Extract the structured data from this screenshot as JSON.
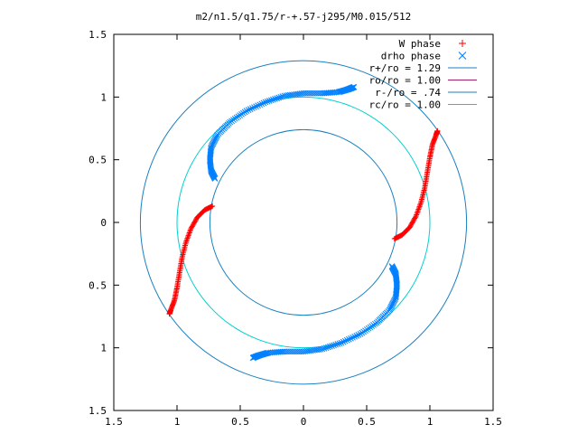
{
  "chart_data": {
    "type": "scatter",
    "title": "m2/n1.5/q1.75/r-+.57-j295/M0.015/512",
    "xlim": [
      -1.5,
      1.5
    ],
    "ylim": [
      -1.5,
      1.5
    ],
    "xticks": [
      {
        "v": -1.5,
        "label": "1.5"
      },
      {
        "v": -1,
        "label": "1"
      },
      {
        "v": -0.5,
        "label": "0.5"
      },
      {
        "v": 0,
        "label": "0"
      },
      {
        "v": 0.5,
        "label": "0.5"
      },
      {
        "v": 1,
        "label": "1"
      },
      {
        "v": 1.5,
        "label": "1.5"
      }
    ],
    "yticks": [
      {
        "v": 1.5,
        "label": "1.5"
      },
      {
        "v": 1,
        "label": "1"
      },
      {
        "v": 0.5,
        "label": "0.5"
      },
      {
        "v": 0,
        "label": "0"
      },
      {
        "v": -0.5,
        "label": "0.5"
      },
      {
        "v": -1,
        "label": "1"
      },
      {
        "v": -1.5,
        "label": "1.5"
      }
    ],
    "legend_position": "top-right",
    "legend": [
      {
        "label": "W phase",
        "marker": "plus",
        "color": "#ff0000"
      },
      {
        "label": "drho phase",
        "marker": "cross",
        "color": "#0080ff"
      },
      {
        "label": "r+/ro = 1.29",
        "line": true,
        "color": "#1a80c0"
      },
      {
        "label": "ro/ro = 1.00",
        "line": true,
        "color": "#a0206a"
      },
      {
        "label": "r-/ro = .74",
        "line": true,
        "color": "#1a80c0"
      },
      {
        "label": "rc/ro = 1.00",
        "line": true,
        "color": "#00d0d0"
      }
    ],
    "circles": [
      {
        "name": "r+/ro",
        "r": 1.29,
        "color": "#1a80c0"
      },
      {
        "name": "r-/ro",
        "r": 0.74,
        "color": "#1a80c0"
      },
      {
        "name": "rc/ro",
        "r": 1.0,
        "color": "#00d0d0"
      }
    ],
    "series": [
      {
        "name": "W phase",
        "marker": "plus",
        "color": "#ff0000",
        "arms": [
          {
            "points": [
              [
                0.72,
                -0.13
              ],
              [
                0.78,
                -0.1
              ],
              [
                0.84,
                -0.04
              ],
              [
                0.89,
                0.05
              ],
              [
                0.93,
                0.16
              ],
              [
                0.96,
                0.28
              ],
              [
                0.98,
                0.4
              ],
              [
                1.0,
                0.52
              ],
              [
                1.02,
                0.62
              ],
              [
                1.05,
                0.7
              ],
              [
                1.06,
                0.73
              ]
            ]
          },
          {
            "points": [
              [
                -0.72,
                0.13
              ],
              [
                -0.78,
                0.1
              ],
              [
                -0.84,
                0.04
              ],
              [
                -0.89,
                -0.05
              ],
              [
                -0.93,
                -0.16
              ],
              [
                -0.96,
                -0.28
              ],
              [
                -0.98,
                -0.4
              ],
              [
                -1.0,
                -0.52
              ],
              [
                -1.02,
                -0.62
              ],
              [
                -1.05,
                -0.7
              ],
              [
                -1.06,
                -0.73
              ]
            ]
          }
        ]
      },
      {
        "name": "drho phase",
        "marker": "cross",
        "color": "#0080ff",
        "arms": [
          {
            "points": [
              [
                -0.7,
                0.35
              ],
              [
                -0.73,
                0.41
              ],
              [
                -0.74,
                0.5
              ],
              [
                -0.73,
                0.6
              ],
              [
                -0.68,
                0.7
              ],
              [
                -0.58,
                0.8
              ],
              [
                -0.45,
                0.89
              ],
              [
                -0.3,
                0.96
              ],
              [
                -0.15,
                1.01
              ],
              [
                0.0,
                1.03
              ],
              [
                0.15,
                1.03
              ],
              [
                0.28,
                1.04
              ],
              [
                0.35,
                1.06
              ],
              [
                0.4,
                1.08
              ]
            ]
          },
          {
            "points": [
              [
                0.7,
                -0.35
              ],
              [
                0.73,
                -0.41
              ],
              [
                0.74,
                -0.5
              ],
              [
                0.73,
                -0.6
              ],
              [
                0.68,
                -0.7
              ],
              [
                0.58,
                -0.8
              ],
              [
                0.45,
                -0.89
              ],
              [
                0.3,
                -0.96
              ],
              [
                0.15,
                -1.01
              ],
              [
                0.0,
                -1.03
              ],
              [
                -0.15,
                -1.03
              ],
              [
                -0.28,
                -1.04
              ],
              [
                -0.35,
                -1.06
              ],
              [
                -0.4,
                -1.08
              ]
            ]
          }
        ]
      }
    ]
  }
}
